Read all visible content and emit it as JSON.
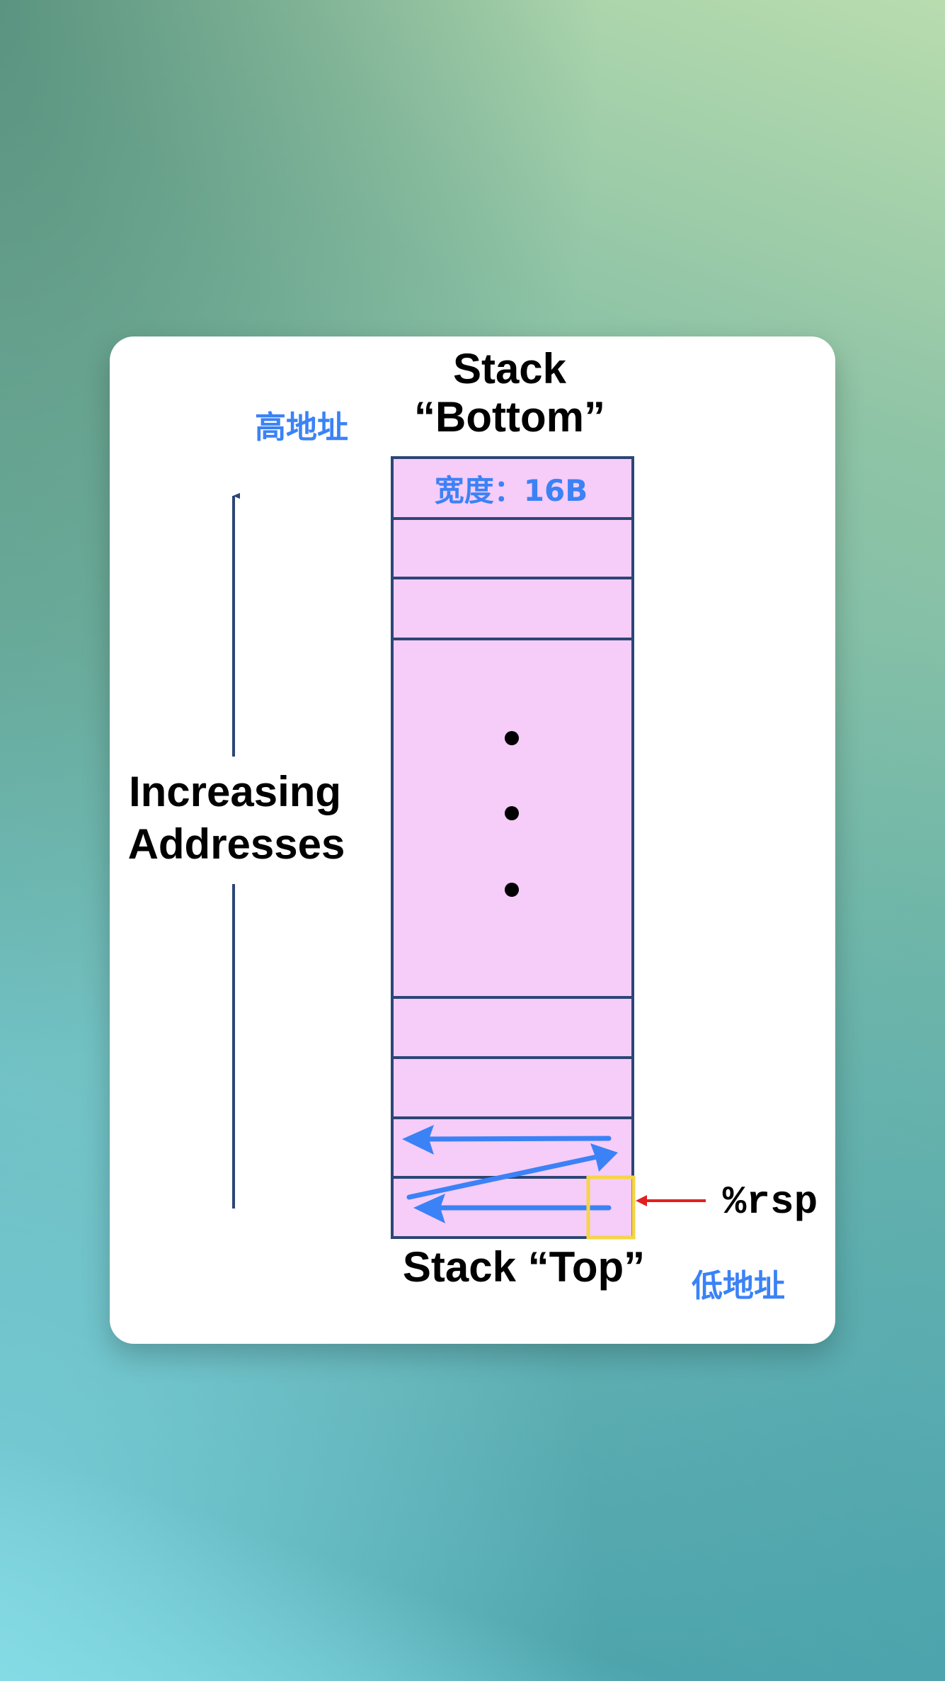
{
  "diagram": {
    "title_line1": "Stack",
    "title_line2": "“Bottom”",
    "top_label": "Stack “Top”",
    "axis_label_line1": "Increasing",
    "axis_label_line2": "Addresses",
    "high_address": "高地址",
    "low_address": "低地址",
    "cell_width_label": "宽度：16B",
    "register": "%rsp",
    "colors": {
      "cell_fill": "#f6ccf8",
      "cell_border": "#2c4675",
      "annotation_blue": "#3b82f6",
      "highlight_box": "#f5d547",
      "pointer_arrow": "#e02020"
    }
  }
}
